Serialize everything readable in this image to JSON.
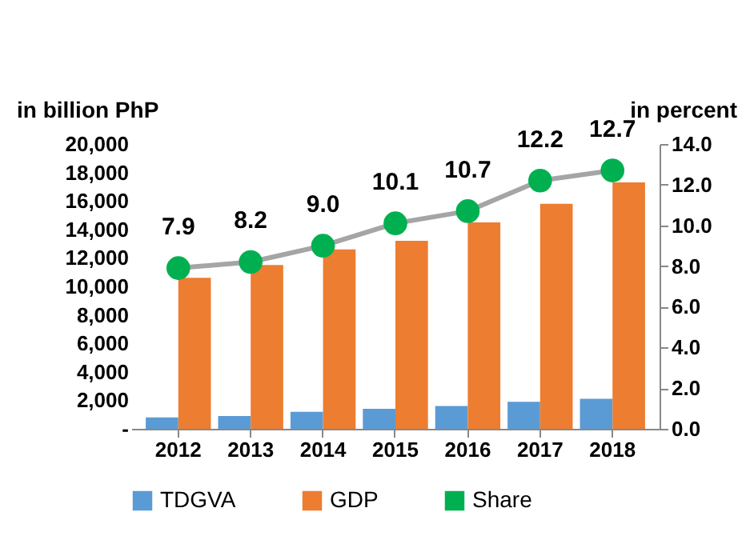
{
  "chart_data": {
    "type": "bar",
    "ylabel": "in billion  PhP",
    "y2label": "in percent",
    "categories": [
      "2012",
      "2013",
      "2014",
      "2015",
      "2016",
      "2017",
      "2018"
    ],
    "series": [
      {
        "name": "TDGVA",
        "color": "#5b9bd5",
        "values": [
          800,
          900,
          1200,
          1400,
          1600,
          1900,
          2100
        ]
      },
      {
        "name": "GDP",
        "color": "#ed7d31",
        "values": [
          10600,
          11500,
          12600,
          13200,
          14500,
          15800,
          17300
        ]
      },
      {
        "name": "Share",
        "type": "line",
        "axis": "y2",
        "color": "#00b050",
        "values": [
          7.9,
          8.2,
          9.0,
          10.1,
          10.7,
          12.2,
          12.7
        ],
        "value_labels": [
          "7.9",
          "8.2",
          "9.0",
          "10.1",
          "10.7",
          "12.2",
          "12.7"
        ]
      }
    ],
    "ylim": [
      0,
      20000
    ],
    "yticks": [
      {
        "value": 0,
        "label": "-"
      },
      {
        "value": 2000,
        "label": "2,000"
      },
      {
        "value": 4000,
        "label": "4,000"
      },
      {
        "value": 6000,
        "label": "6,000"
      },
      {
        "value": 8000,
        "label": "8,000"
      },
      {
        "value": 10000,
        "label": "10,000"
      },
      {
        "value": 12000,
        "label": "12,000"
      },
      {
        "value": 14000,
        "label": "14,000"
      },
      {
        "value": 16000,
        "label": "16,000"
      },
      {
        "value": 18000,
        "label": "18,000"
      },
      {
        "value": 20000,
        "label": "20,000"
      }
    ],
    "y2lim": [
      0,
      14
    ],
    "y2ticks": [
      {
        "value": 0,
        "label": "0.0"
      },
      {
        "value": 2,
        "label": "2.0"
      },
      {
        "value": 4,
        "label": "4.0"
      },
      {
        "value": 6,
        "label": "6.0"
      },
      {
        "value": 8,
        "label": "8.0"
      },
      {
        "value": 10,
        "label": "10.0"
      },
      {
        "value": 12,
        "label": "12.0"
      },
      {
        "value": 14,
        "label": "14.0"
      }
    ],
    "legend": "bottom",
    "marker": "circle",
    "grid": false
  }
}
